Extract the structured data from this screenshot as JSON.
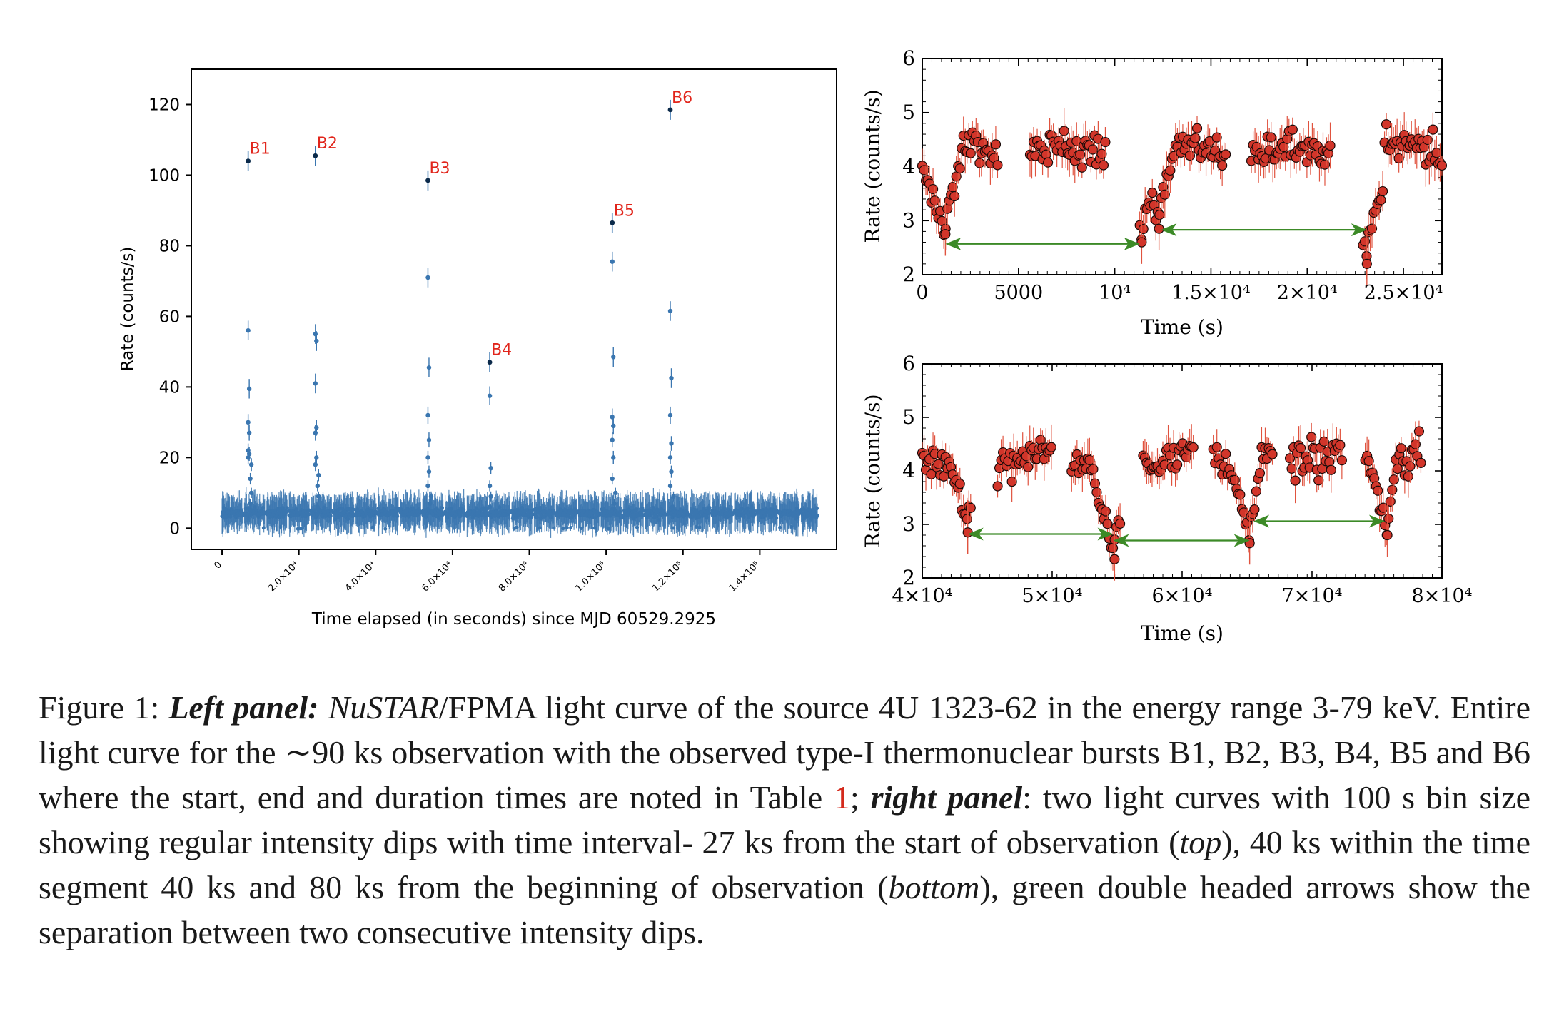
{
  "colors": {
    "blue": "#3a76b0",
    "dark": "#0b2a4a",
    "burst_label": "#e1251b",
    "red_fill": "#d2352a",
    "red_err": "#e0533f",
    "green": "#3c8a27",
    "caption_ref": "#d42a1c"
  },
  "chart_data": [
    {
      "type": "scatter",
      "name": "left-panel",
      "xlabel": "Time elapsed (in seconds) since MJD 60529.2925",
      "ylabel": "Rate (counts/s)",
      "xlim": [
        -8000,
        160000
      ],
      "ylim": [
        -6,
        130
      ],
      "xticks": [
        {
          "v": 0,
          "label": "0"
        },
        {
          "v": 20000,
          "label": "2.0×10⁴"
        },
        {
          "v": 40000,
          "label": "4.0×10⁴"
        },
        {
          "v": 60000,
          "label": "6.0×10⁴"
        },
        {
          "v": 80000,
          "label": "8.0×10⁴"
        },
        {
          "v": 100000,
          "label": "1.0×10⁵"
        },
        {
          "v": 120000,
          "label": "1.2×10⁵"
        },
        {
          "v": 140000,
          "label": "1.4×10⁵"
        }
      ],
      "yticks": [
        0,
        20,
        40,
        60,
        80,
        100,
        120
      ],
      "baseline": {
        "mean": 4.3,
        "spread": 1.6,
        "segments": [
          [
            0,
            155000
          ]
        ]
      },
      "bursts": [
        {
          "label": "B1",
          "t": 6800,
          "peak": 104.0,
          "decay": [
            56,
            39.5,
            30,
            27,
            22,
            21,
            20,
            18,
            14,
            10,
            7
          ]
        },
        {
          "label": "B2",
          "t": 24300,
          "peak": 105.5,
          "decay": [
            55,
            53,
            41,
            28.5,
            27,
            20,
            18,
            15,
            12,
            9,
            6
          ]
        },
        {
          "label": "B3",
          "t": 53600,
          "peak": 98.5,
          "decay": [
            71,
            45.5,
            32,
            25,
            20,
            16,
            12,
            9,
            7
          ]
        },
        {
          "label": "B4",
          "t": 69700,
          "peak": 47.0,
          "decay": [
            37.5,
            17,
            12,
            9,
            6
          ]
        },
        {
          "label": "B5",
          "t": 101600,
          "peak": 86.5,
          "decay": [
            75.5,
            48.5,
            31.5,
            29,
            25,
            20,
            14,
            10,
            7
          ]
        },
        {
          "label": "B6",
          "t": 116700,
          "peak": 118.5,
          "decay": [
            61.5,
            42.5,
            32,
            24,
            20,
            16,
            12,
            9,
            6
          ]
        }
      ]
    },
    {
      "type": "scatter",
      "name": "right-top",
      "xlabel": "Time (s)",
      "ylabel": "Rate (counts/s)",
      "xlim": [
        0,
        27000
      ],
      "ylim": [
        2,
        6
      ],
      "xticks": [
        {
          "v": 0,
          "label": "0"
        },
        {
          "v": 5000,
          "label": "5000"
        },
        {
          "v": 10000,
          "label": "10⁴"
        },
        {
          "v": 15000,
          "label": "1.5×10⁴"
        },
        {
          "v": 20000,
          "label": "2×10⁴"
        },
        {
          "v": 25000,
          "label": "2.5×10⁴"
        }
      ],
      "yticks": [
        2,
        3,
        4,
        5,
        6
      ],
      "dips": [
        {
          "x": 1200,
          "y": 2.75
        },
        {
          "x": 11400,
          "y": 2.6
        },
        {
          "x": 12300,
          "y": 2.85
        },
        {
          "x": 23100,
          "y": 2.2
        }
      ],
      "arrows": [
        {
          "x1": 1200,
          "x2": 11300,
          "y": 2.57
        },
        {
          "x1": 12400,
          "x2": 23100,
          "y": 2.83
        }
      ],
      "segments": [
        [
          0,
          4000
        ],
        [
          5600,
          9600
        ],
        [
          11300,
          15800
        ],
        [
          17100,
          21200
        ],
        [
          22900,
          27000
        ]
      ]
    },
    {
      "type": "scatter",
      "name": "right-bottom",
      "xlabel": "Time (s)",
      "ylabel": "Rate (counts/s)",
      "xlim": [
        40000,
        80000
      ],
      "ylim": [
        2,
        6
      ],
      "xticks": [
        {
          "v": 40000,
          "label": "4×10⁴"
        },
        {
          "v": 50000,
          "label": "5×10⁴"
        },
        {
          "v": 60000,
          "label": "6×10⁴"
        },
        {
          "v": 70000,
          "label": "7×10⁴"
        },
        {
          "v": 80000,
          "label": "8×10⁴"
        }
      ],
      "yticks": [
        2,
        3,
        4,
        5,
        6
      ],
      "dips": [
        {
          "x": 43500,
          "y": 2.85
        },
        {
          "x": 54800,
          "y": 2.35
        },
        {
          "x": 65200,
          "y": 2.65
        },
        {
          "x": 75800,
          "y": 2.8
        }
      ],
      "arrows": [
        {
          "x1": 43500,
          "x2": 54700,
          "y": 2.82
        },
        {
          "x1": 54700,
          "x2": 65200,
          "y": 2.7
        },
        {
          "x1": 65500,
          "x2": 75600,
          "y": 3.06
        }
      ],
      "segments": [
        [
          40000,
          43800
        ],
        [
          45800,
          50000
        ],
        [
          51500,
          55300
        ],
        [
          57000,
          61000
        ],
        [
          62400,
          67000
        ],
        [
          68300,
          72400
        ],
        [
          74100,
          78400
        ]
      ]
    }
  ],
  "caption": {
    "fig": "Figure 1:",
    "left_label": "Left panel:",
    "mission": "NuSTAR",
    "t1": "/FPMA light curve of the source 4U 1323-62 in the energy range 3-79 keV. Entire light curve for the ∼90 ks observation with the observed type-I thermonuclear bursts B1, B2, B3, B4, B5 and B6 where the start, end and duration times are noted in Table",
    "ref": "1",
    "semi": ";",
    "right_label": "right panel",
    "t2": ": two light curves with 100 s bin size showing regular intensity dips with time interval- 27 ks from the start of observation (",
    "top_word": "top",
    "t3": "), 40 ks within the time segment 40 ks and 80 ks from the beginning of observation (",
    "bottom_word": "bottom",
    "t4": "), green double headed arrows show the separation between two consecutive intensity dips."
  }
}
